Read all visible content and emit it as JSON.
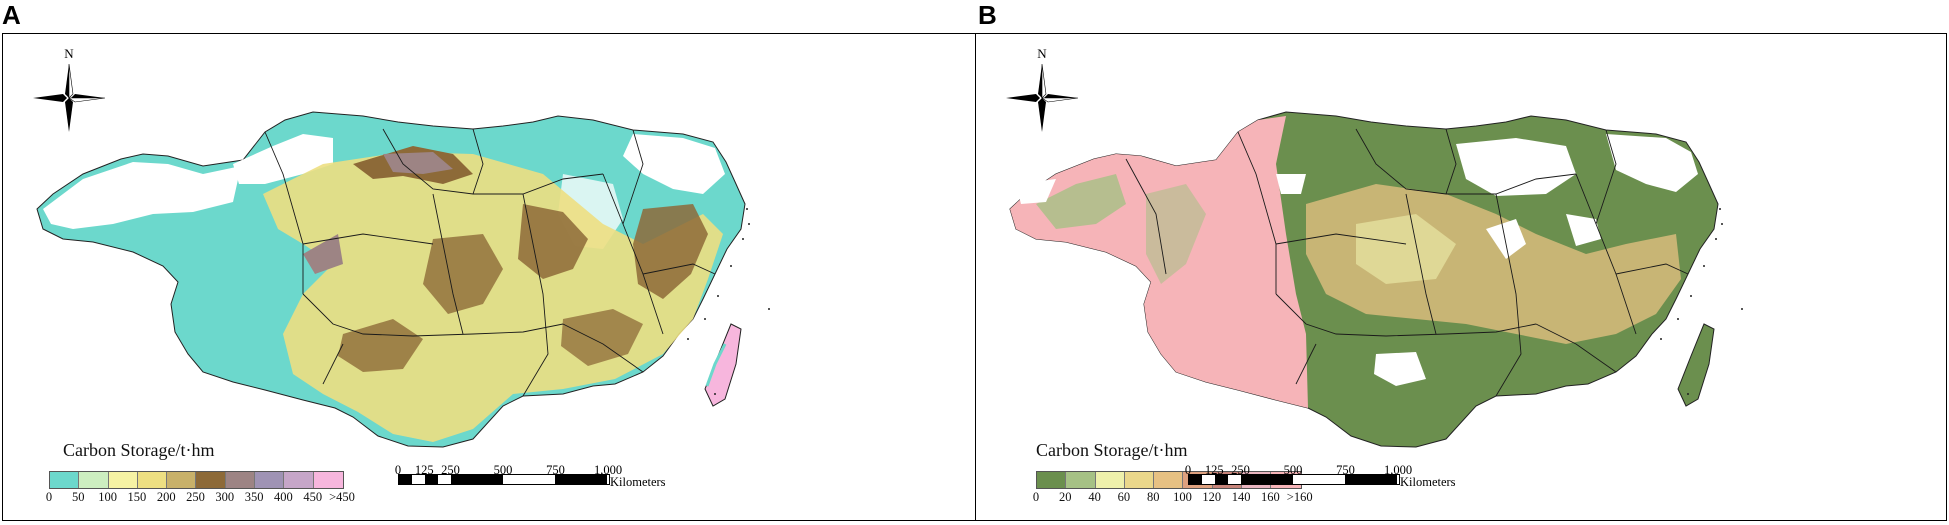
{
  "panels": [
    {
      "letter": "A",
      "north_label": "N",
      "legend_title": "Carbon Storage/t·hm",
      "legend_labels": [
        "0",
        "50",
        "100",
        "150",
        "200",
        "250",
        "300",
        "350",
        "400",
        "450",
        ">450"
      ],
      "legend_colors": [
        "#6cd8cc",
        "#cdeec0",
        "#f6f3a4",
        "#eddf82",
        "#c8b16a",
        "#8d6a38",
        "#9d8484",
        "#9f93b4",
        "#c6a6c8",
        "#f7b6dd"
      ],
      "scale_labels": [
        "0",
        "125",
        "250",
        "500",
        "750",
        "1,000"
      ],
      "scale_unit": "Kilometers",
      "map_colors": {
        "base": "#6cd8cc",
        "mid": "#eddf82",
        "high": "#8d6a38",
        "vhigh": "#9d8484",
        "island": "#f7b6dd"
      }
    },
    {
      "letter": "B",
      "north_label": "N",
      "legend_title": "Carbon Storage/t·hm",
      "legend_labels": [
        "0",
        "20",
        "40",
        "60",
        "80",
        "100",
        "120",
        "140",
        "160",
        ">160"
      ],
      "legend_colors": [
        "#6b8f4e",
        "#a6c185",
        "#eef0ab",
        "#ead78b",
        "#e7c183",
        "#dea17f",
        "#c7847a",
        "#e8b4bf",
        "#f6b4b8"
      ],
      "scale_labels": [
        "0",
        "125",
        "250",
        "500",
        "750",
        "1,000"
      ],
      "scale_unit": "Kilometers",
      "map_colors": {
        "west": "#f6b4b8",
        "base": "#6b8f4e",
        "mid": "#e7c183",
        "light": "#eef0ab"
      }
    }
  ]
}
